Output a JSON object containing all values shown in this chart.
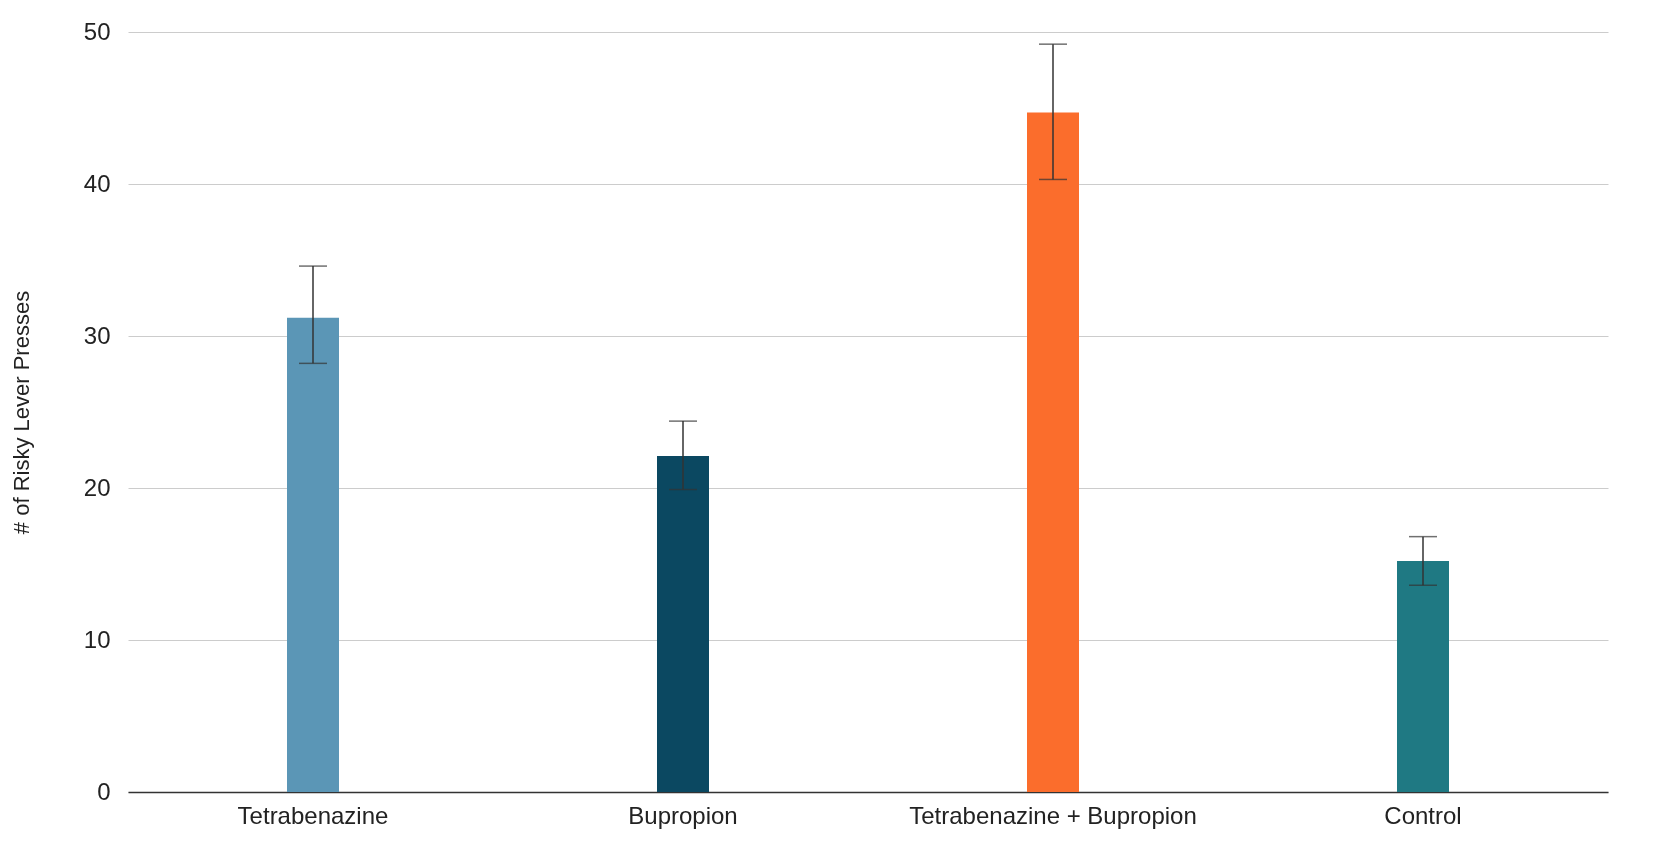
{
  "chart_data": {
    "type": "bar",
    "ylabel": "# of Risky Lever Presses",
    "categories": [
      "Tetrabenazine",
      "Bupropion",
      "Tetrabenazine + Bupropion",
      "Control"
    ],
    "values": [
      31.2,
      22.1,
      44.7,
      15.2
    ],
    "colors": [
      "#5b96b6",
      "#0b4861",
      "#fb6d2c",
      "#1f7983"
    ],
    "errors": [
      [
        28.2,
        34.6
      ],
      [
        19.9,
        24.4
      ],
      [
        40.3,
        49.2
      ],
      [
        13.6,
        16.8
      ]
    ],
    "ylim": [
      0,
      50
    ],
    "yticks": [
      0,
      10,
      20,
      30,
      40,
      50
    ],
    "grid": "y"
  }
}
